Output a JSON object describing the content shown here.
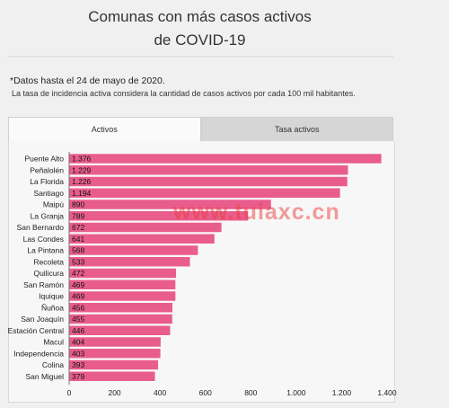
{
  "header": {
    "title_line1": "Comunas con más casos activos",
    "title_line2": "de COVID-19"
  },
  "notes": {
    "date_note": "*Datos hasta el 24 de mayo de 2020.",
    "rate_note": "La tasa de incidencia activa considera la cantidad de casos activos por cada 100 mil habitantes."
  },
  "tabs": [
    {
      "label": "Activos",
      "active": true
    },
    {
      "label": "Tasa activos",
      "active": false
    }
  ],
  "watermark": "www.tuiaxc.cn",
  "colors": {
    "bar": "#e85d8c",
    "bar_stroke": "#ffffff",
    "watermark": "#ec3c3c",
    "tab_active": "#fafafa",
    "tab_inactive": "#d6d6d6"
  },
  "chart_data": {
    "type": "bar",
    "orientation": "horizontal",
    "categories": [
      "Puente Alto",
      "Peñalolén",
      "La Florida",
      "Santiago",
      "Maipú",
      "La Granja",
      "San Bernardo",
      "Las Condes",
      "La Pintana",
      "Recoleta",
      "Quilicura",
      "San Ramón",
      "Iquique",
      "Ñuñoa",
      "San Joaquín",
      "Estación Central",
      "Macul",
      "Independencia",
      "Colina",
      "San Miguel"
    ],
    "values": [
      1376,
      1229,
      1226,
      1194,
      890,
      789,
      672,
      641,
      568,
      533,
      472,
      469,
      469,
      456,
      455,
      446,
      404,
      403,
      393,
      379
    ],
    "value_labels": [
      "1.376",
      "1.229",
      "1.226",
      "1.194",
      "890",
      "789",
      "672",
      "641",
      "568",
      "533",
      "472",
      "469",
      "469",
      "456",
      "455",
      "446",
      "404",
      "403",
      "393",
      "379"
    ],
    "xlim": [
      0,
      1400
    ],
    "ticks": [
      0,
      200,
      400,
      600,
      800,
      1000,
      1200,
      1400
    ],
    "tick_labels": [
      "0",
      "200",
      "400",
      "600",
      "800",
      "1.000",
      "1.200",
      "1.400"
    ],
    "grid": false,
    "legend": "none"
  }
}
